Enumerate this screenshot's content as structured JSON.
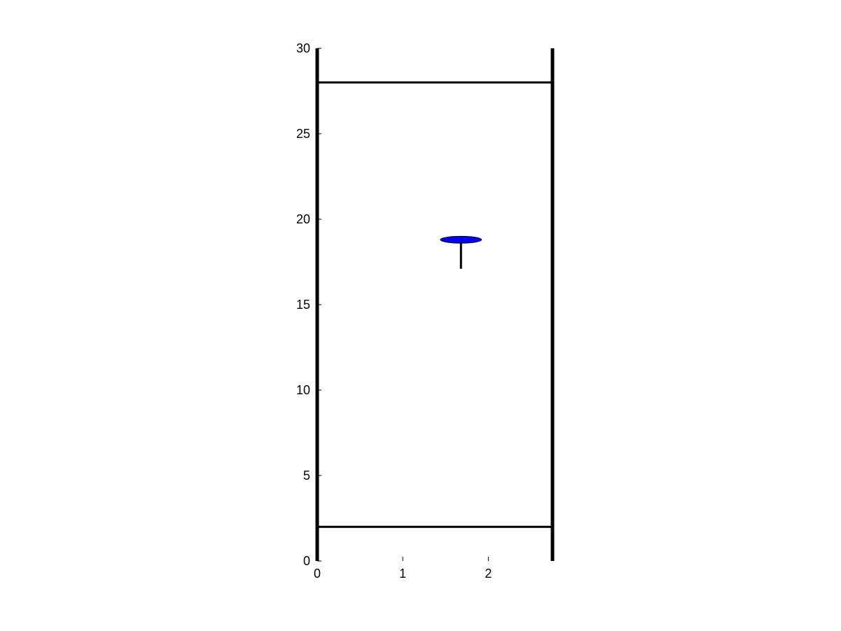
{
  "chart_data": {
    "type": "scatter",
    "title": "",
    "xlabel": "",
    "ylabel": "",
    "xlim": [
      0,
      2.75
    ],
    "ylim": [
      0,
      30
    ],
    "x_ticks": [
      0,
      1,
      2
    ],
    "y_ticks": [
      0,
      5,
      10,
      15,
      20,
      25,
      30
    ],
    "x_tick_labels": [
      "0",
      "1",
      "2"
    ],
    "y_tick_labels": [
      "0",
      "5",
      "10",
      "15",
      "20",
      "25",
      "30"
    ],
    "grid": false,
    "legend": "none",
    "walls": {
      "x": [
        0,
        2.75
      ],
      "color": "#000000"
    },
    "horizontal_lines": {
      "y": [
        2,
        28
      ],
      "x_range": [
        0,
        2.75
      ],
      "color": "#000000"
    },
    "marker": {
      "shape": "ellipse",
      "center": {
        "x": 1.68,
        "y": 18.8
      },
      "half_width": 0.24,
      "half_height": 0.2,
      "fill": "#0000ff",
      "stroke": "#000000"
    },
    "stem": {
      "x": 1.68,
      "y_from": 18.8,
      "y_to": 17.1,
      "color": "#000000"
    }
  }
}
